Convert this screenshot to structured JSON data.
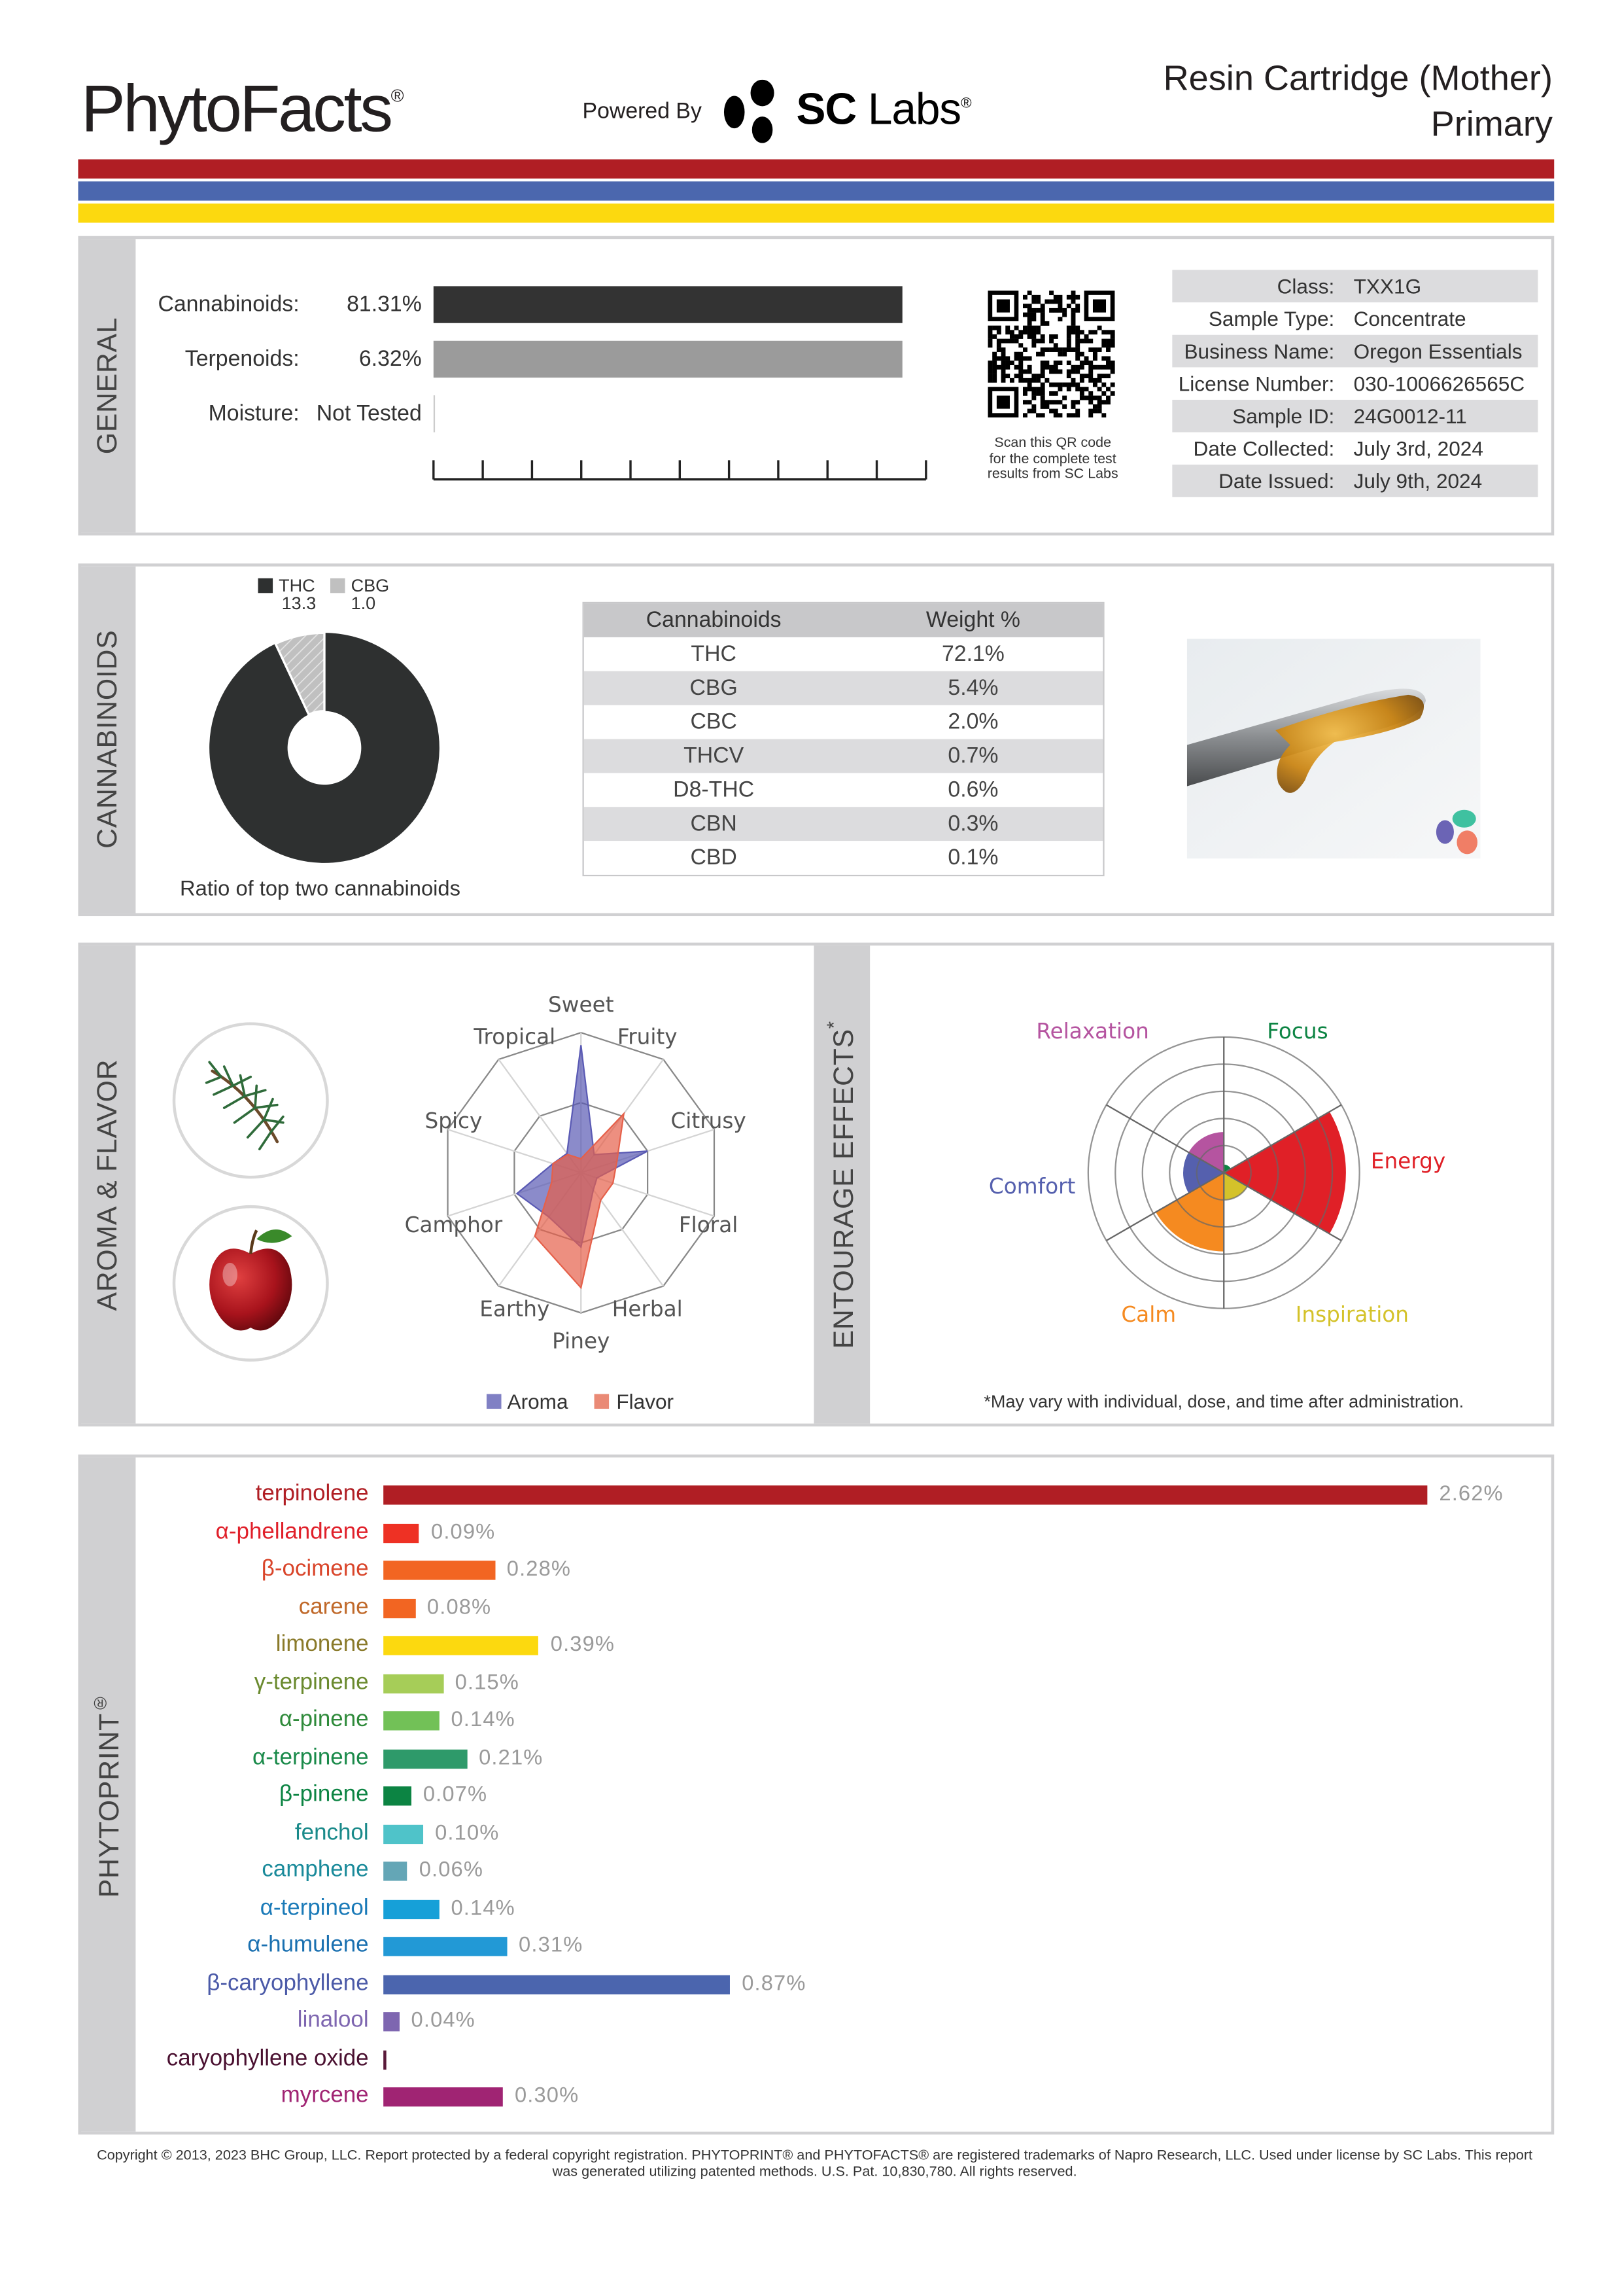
{
  "header": {
    "logo": "PhytoFacts",
    "logo_mark": "®",
    "powered_by": "Powered By",
    "partner_logo_sc": "SC",
    "partner_logo_labs": "Labs",
    "partner_mark": "®",
    "product_name": "Resin Cartridge (Mother)",
    "product_type": "Primary",
    "stripe_colors": [
      "#b01e24",
      "#4b67ae",
      "#fcd90f"
    ]
  },
  "general": {
    "section_label": "GENERAL",
    "cannabinoids_label": "Cannabinoids:",
    "cannabinoids_value": "81.31%",
    "terpenoids_label": "Terpenoids:",
    "terpenoids_value": "6.32%",
    "moisture_label": "Moisture:",
    "moisture_value": "Not Tested",
    "qr_caption": [
      "Scan this QR code",
      "for the complete test",
      "results from SC Labs"
    ],
    "info": [
      {
        "label": "Class:",
        "value": "TXX1G"
      },
      {
        "label": "Sample Type:",
        "value": "Concentrate"
      },
      {
        "label": "Business Name:",
        "value": "Oregon Essentials"
      },
      {
        "label": "License Number:",
        "value": "030-1006626565C"
      },
      {
        "label": "Sample ID:",
        "value": "24G0012-11"
      },
      {
        "label": "Date Collected:",
        "value": "July 3rd, 2024"
      },
      {
        "label": "Date Issued:",
        "value": "July 9th, 2024"
      }
    ]
  },
  "cannabinoids": {
    "section_label": "CANNABINOIDS",
    "ratio_caption": "Ratio of top two cannabinoids",
    "table_headers": [
      "Cannabinoids",
      "Weight %"
    ],
    "rows": [
      {
        "name": "THC",
        "weight": "72.1%"
      },
      {
        "name": "CBG",
        "weight": "5.4%"
      },
      {
        "name": "CBC",
        "weight": "2.0%"
      },
      {
        "name": "THCV",
        "weight": "0.7%"
      },
      {
        "name": "D8-THC",
        "weight": "0.6%"
      },
      {
        "name": "CBN",
        "weight": "0.3%"
      },
      {
        "name": "CBD",
        "weight": "0.1%"
      }
    ]
  },
  "aroma": {
    "section_label": "AROMA & FLAVOR",
    "legend_aroma": "Aroma",
    "legend_flavor": "Flavor",
    "icons": [
      "pine-branch-icon",
      "apple-icon"
    ]
  },
  "entourage": {
    "section_label": "ENTOURAGE EFFECTS",
    "section_mark": "*",
    "footnote": "*May vary with individual, dose, and time after administration."
  },
  "phytoprint": {
    "section_label": "PHYTOPRINT",
    "section_mark": "®"
  },
  "footer": {
    "line1": "Copyright © 2013, 2023 BHC Group, LLC. Report protected by a federal copyright registration. PHYTOPRINT® and PHYTOFACTS® are registered trademarks of Napro Research, LLC. Used under license by SC Labs. This report",
    "line2": "was generated utilizing patented methods. U.S. Pat. 10,830,780. All rights reserved."
  },
  "chart_data": [
    {
      "type": "pie",
      "title": "Ratio of top two cannabinoids",
      "categories": [
        "THC",
        "CBG"
      ],
      "values": [
        13.3,
        1.0
      ],
      "colors": [
        "#2e3030",
        "#c0c0c0"
      ],
      "legend": "top"
    },
    {
      "type": "radar",
      "axes": [
        "Sweet",
        "Fruity",
        "Citrusy",
        "Floral",
        "Herbal",
        "Piney",
        "Earthy",
        "Camphor",
        "Spicy",
        "Tropical"
      ],
      "range": [
        0,
        1
      ],
      "series": [
        {
          "name": "Aroma",
          "color": "#5a5ab4",
          "values": [
            0.91,
            0.16,
            0.5,
            0.12,
            0.15,
            0.53,
            0.39,
            0.48,
            0.21,
            0.17
          ]
        },
        {
          "name": "Flavor",
          "color": "#e5604a",
          "values": [
            0.1,
            0.52,
            0.27,
            0.24,
            0.24,
            0.82,
            0.56,
            0.22,
            0.21,
            0.16
          ]
        }
      ],
      "legend": "bottom"
    },
    {
      "type": "polar-area",
      "range": [
        0,
        5
      ],
      "categories": [
        "Focus",
        "Energy",
        "Inspiration",
        "Calm",
        "Comfort",
        "Relaxation"
      ],
      "values": [
        0.3,
        4.5,
        1.0,
        2.9,
        1.5,
        1.5
      ],
      "colors": [
        "#0c8443",
        "#e02027",
        "#d4c22a",
        "#f58a20",
        "#5560ae",
        "#b554a0"
      ]
    },
    {
      "type": "bar",
      "orientation": "horizontal",
      "categories": [
        "terpinolene",
        "α-phellandrene",
        "β-ocimene",
        "carene",
        "limonene",
        "γ-terpinene",
        "α-pinene",
        "α-terpinene",
        "β-pinene",
        "fenchol",
        "camphene",
        "α-terpineol",
        "α-humulene",
        "β-caryophyllene",
        "linalool",
        "caryophyllene oxide",
        "myrcene"
      ],
      "values": [
        2.62,
        0.09,
        0.28,
        0.08,
        0.39,
        0.15,
        0.14,
        0.21,
        0.07,
        0.1,
        0.06,
        0.14,
        0.31,
        0.87,
        0.04,
        0.005,
        0.3
      ],
      "labels": [
        "2.62%",
        "0.09%",
        "0.28%",
        "0.08%",
        "0.39%",
        "0.15%",
        "0.14%",
        "0.21%",
        "0.07%",
        "0.10%",
        "0.06%",
        "0.14%",
        "0.31%",
        "0.87%",
        "0.04%",
        "",
        "0.30%"
      ],
      "bar_colors": [
        "#b01e24",
        "#ee3124",
        "#f26522",
        "#f26522",
        "#fcd90f",
        "#a6cd58",
        "#72c157",
        "#2e9a6a",
        "#0c8443",
        "#4fc3c9",
        "#64a6b6",
        "#16a0d8",
        "#2299d6",
        "#4b65ae",
        "#7e66b0",
        "#5a1a3a",
        "#a02473"
      ],
      "label_colors": [
        "#b01e24",
        "#e0202a",
        "#d9452a",
        "#c0692a",
        "#8a7a2a",
        "#6a8a2e",
        "#2e8a3a",
        "#1a8a4a",
        "#0c8443",
        "#1a8a8a",
        "#1a8a9a",
        "#1a7ab8",
        "#1a70b0",
        "#4b5aa8",
        "#7e66b0",
        "#4a1030",
        "#a02473"
      ]
    }
  ]
}
